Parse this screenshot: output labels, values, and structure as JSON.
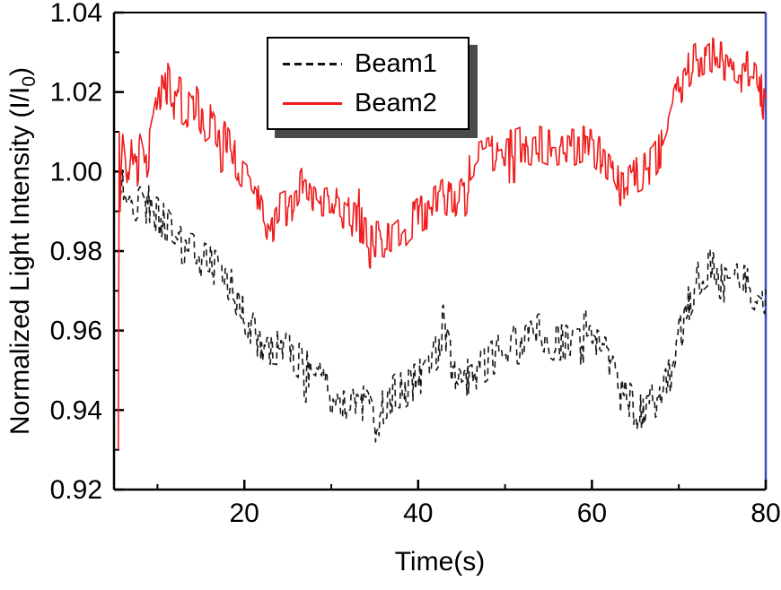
{
  "figure": {
    "background": "#ffffff"
  },
  "legend": {
    "border_color": "#000000",
    "shadow_color": "#4a4a4a"
  },
  "chart_data": {
    "type": "line",
    "title": "",
    "xlabel": "Time(s)",
    "ylabel": "Normalized Light Intensity (I/I0)",
    "ylabel_prefix": "Normalized Light Intensity (I/I",
    "ylabel_sub": "0",
    "ylabel_suffix": ")",
    "xlim": [
      5,
      80
    ],
    "ylim": [
      0.92,
      1.04
    ],
    "xticks": [
      20,
      40,
      60,
      80
    ],
    "xminor": [
      10,
      30,
      50,
      70
    ],
    "yticks": [
      0.92,
      0.94,
      0.96,
      0.98,
      1.0,
      1.02,
      1.04
    ],
    "yminor": [
      0.93,
      0.95,
      0.97,
      0.99,
      1.01,
      1.03
    ],
    "grid": false,
    "legend_position": "top-center",
    "frame_color": "#000000",
    "right_spine_color": "#3b4cc0",
    "sample_dt": 0.1,
    "series": [
      {
        "name": "Beam1",
        "style": "dashed",
        "dash": "7 5",
        "color": "#1a1a1a",
        "width": 1.6,
        "noise_amp": 0.0044,
        "seed": 11,
        "anchors": [
          [
            5.6,
            1.0
          ],
          [
            5.8,
            0.99
          ],
          [
            6,
            0.996
          ],
          [
            6.5,
            0.992
          ],
          [
            7,
            0.995
          ],
          [
            7.5,
            0.992
          ],
          [
            8,
            0.994
          ],
          [
            8.5,
            0.991
          ],
          [
            9,
            0.992
          ],
          [
            9.5,
            0.99
          ],
          [
            10,
            0.989
          ],
          [
            10.5,
            0.988
          ],
          [
            11,
            0.987
          ],
          [
            11.5,
            0.985
          ],
          [
            12,
            0.984
          ],
          [
            12.5,
            0.982
          ],
          [
            13,
            0.981
          ],
          [
            13.5,
            0.98
          ],
          [
            14,
            0.98
          ],
          [
            14.5,
            0.979
          ],
          [
            15,
            0.978
          ],
          [
            16,
            0.977
          ],
          [
            16.5,
            0.976
          ],
          [
            17,
            0.975
          ],
          [
            17.5,
            0.974
          ],
          [
            18,
            0.973
          ],
          [
            18.5,
            0.971
          ],
          [
            19,
            0.969
          ],
          [
            19.5,
            0.966
          ],
          [
            20,
            0.964
          ],
          [
            20.5,
            0.962
          ],
          [
            21,
            0.96
          ],
          [
            21.5,
            0.958
          ],
          [
            22,
            0.957
          ],
          [
            22.5,
            0.956
          ],
          [
            23.5,
            0.956
          ],
          [
            24.5,
            0.955
          ],
          [
            25,
            0.955
          ],
          [
            25.5,
            0.954
          ],
          [
            26,
            0.953
          ],
          [
            26.5,
            0.952
          ],
          [
            27,
            0.951
          ],
          [
            27.5,
            0.95
          ],
          [
            28,
            0.949
          ],
          [
            28.5,
            0.948
          ],
          [
            29,
            0.946
          ],
          [
            29.5,
            0.945
          ],
          [
            30,
            0.944
          ],
          [
            30.5,
            0.941
          ],
          [
            31,
            0.943
          ],
          [
            32,
            0.942
          ],
          [
            32.5,
            0.943
          ],
          [
            33,
            0.944
          ],
          [
            33.5,
            0.942
          ],
          [
            34,
            0.941
          ],
          [
            34.5,
            0.939
          ],
          [
            35,
            0.936
          ],
          [
            35.5,
            0.938
          ],
          [
            36,
            0.941
          ],
          [
            36.5,
            0.943
          ],
          [
            37,
            0.944
          ],
          [
            37.5,
            0.945
          ],
          [
            38.5,
            0.945
          ],
          [
            39,
            0.946
          ],
          [
            39.5,
            0.947
          ],
          [
            40,
            0.948
          ],
          [
            40.5,
            0.949
          ],
          [
            41,
            0.951
          ],
          [
            41.5,
            0.952
          ],
          [
            42,
            0.954
          ],
          [
            42.5,
            0.956
          ],
          [
            43,
            0.958
          ],
          [
            43.5,
            0.955
          ],
          [
            44,
            0.951
          ],
          [
            44.5,
            0.949
          ],
          [
            45,
            0.947
          ],
          [
            45.5,
            0.948
          ],
          [
            46,
            0.949
          ],
          [
            47,
            0.95
          ],
          [
            47.5,
            0.951
          ],
          [
            48,
            0.952
          ],
          [
            48.5,
            0.953
          ],
          [
            49,
            0.954
          ],
          [
            49.5,
            0.955
          ],
          [
            50,
            0.956
          ],
          [
            50.5,
            0.957
          ],
          [
            51,
            0.957
          ],
          [
            51.5,
            0.956
          ],
          [
            52,
            0.956
          ],
          [
            52.5,
            0.957
          ],
          [
            53,
            0.958
          ],
          [
            53.5,
            0.959
          ],
          [
            54,
            0.96
          ],
          [
            54.5,
            0.959
          ],
          [
            55,
            0.958
          ],
          [
            55.5,
            0.957
          ],
          [
            56,
            0.957
          ],
          [
            57,
            0.957
          ],
          [
            57.5,
            0.956
          ],
          [
            58,
            0.956
          ],
          [
            59,
            0.956
          ],
          [
            60,
            0.957
          ],
          [
            60.5,
            0.956
          ],
          [
            61,
            0.955
          ],
          [
            61.5,
            0.954
          ],
          [
            62,
            0.953
          ],
          [
            62.5,
            0.951
          ],
          [
            63,
            0.95
          ],
          [
            63.5,
            0.947
          ],
          [
            64,
            0.944
          ],
          [
            64.5,
            0.942
          ],
          [
            65,
            0.94
          ],
          [
            65.5,
            0.939
          ],
          [
            66,
            0.941
          ],
          [
            67,
            0.942
          ],
          [
            67.5,
            0.943
          ],
          [
            68,
            0.944
          ],
          [
            68.5,
            0.946
          ],
          [
            69,
            0.949
          ],
          [
            69.5,
            0.953
          ],
          [
            70,
            0.958
          ],
          [
            70.5,
            0.962
          ],
          [
            71,
            0.966
          ],
          [
            71.5,
            0.969
          ],
          [
            72,
            0.972
          ],
          [
            72.5,
            0.974
          ],
          [
            73,
            0.975
          ],
          [
            73.5,
            0.976
          ],
          [
            74,
            0.975
          ],
          [
            74.5,
            0.973
          ],
          [
            75,
            0.972
          ],
          [
            75.5,
            0.971
          ],
          [
            76,
            0.971
          ],
          [
            76.5,
            0.972
          ],
          [
            77,
            0.973
          ],
          [
            77.5,
            0.972
          ],
          [
            78,
            0.971
          ],
          [
            78.5,
            0.97
          ],
          [
            79,
            0.969
          ],
          [
            79.5,
            0.968
          ],
          [
            80,
            0.966
          ]
        ]
      },
      {
        "name": "Beam2",
        "style": "solid",
        "dash": "",
        "color": "#ee1c1c",
        "width": 1.6,
        "noise_amp": 0.0044,
        "seed": 23,
        "anchors": [
          [
            5.5,
            0.93
          ],
          [
            5.55,
            1.02
          ],
          [
            5.7,
            0.99
          ],
          [
            6,
            1.005
          ],
          [
            6.5,
            0.995
          ],
          [
            7,
            1.008
          ],
          [
            7.5,
            0.998
          ],
          [
            8,
            1.005
          ],
          [
            8.5,
            1.0
          ],
          [
            9,
            1.005
          ],
          [
            9.5,
            1.01
          ],
          [
            10,
            1.017
          ],
          [
            10.5,
            1.022
          ],
          [
            11,
            1.02
          ],
          [
            11.5,
            1.016
          ],
          [
            12,
            1.018
          ],
          [
            12.5,
            1.015
          ],
          [
            13,
            1.014
          ],
          [
            13.5,
            1.016
          ],
          [
            14,
            1.014
          ],
          [
            14.5,
            1.017
          ],
          [
            15,
            1.014
          ],
          [
            15.5,
            1.012
          ],
          [
            16,
            1.013
          ],
          [
            16.5,
            1.01
          ],
          [
            17,
            1.008
          ],
          [
            17.5,
            1.009
          ],
          [
            18,
            1.007
          ],
          [
            18.5,
            1.005
          ],
          [
            19,
            1.003
          ],
          [
            19.5,
            1.001
          ],
          [
            20,
            1.0
          ],
          [
            20.5,
            0.999
          ],
          [
            21,
            0.997
          ],
          [
            21.5,
            0.995
          ],
          [
            22,
            0.991
          ],
          [
            22.5,
            0.988
          ],
          [
            23,
            0.985
          ],
          [
            23.5,
            0.988
          ],
          [
            24,
            0.99
          ],
          [
            25,
            0.991
          ],
          [
            26,
            0.993
          ],
          [
            26.5,
            0.996
          ],
          [
            27,
            0.998
          ],
          [
            27.5,
            0.997
          ],
          [
            28,
            0.994
          ],
          [
            29,
            0.991
          ],
          [
            30,
            0.992
          ],
          [
            31,
            0.991
          ],
          [
            32,
            0.989
          ],
          [
            33,
            0.987
          ],
          [
            34,
            0.986
          ],
          [
            35,
            0.983
          ],
          [
            36,
            0.983
          ],
          [
            37,
            0.982
          ],
          [
            38,
            0.984
          ],
          [
            39,
            0.987
          ],
          [
            40,
            0.989
          ],
          [
            41,
            0.99
          ],
          [
            42,
            0.992
          ],
          [
            43,
            0.994
          ],
          [
            44,
            0.992
          ],
          [
            45,
            0.996
          ],
          [
            46,
            1.0
          ],
          [
            47,
            1.003
          ],
          [
            48,
            1.004
          ],
          [
            49,
            1.005
          ],
          [
            50,
            1.006
          ],
          [
            51,
            1.006
          ],
          [
            52,
            1.007
          ],
          [
            53,
            1.006
          ],
          [
            54,
            1.007
          ],
          [
            55,
            1.006
          ],
          [
            56,
            1.006
          ],
          [
            57,
            1.007
          ],
          [
            58,
            1.006
          ],
          [
            59,
            1.007
          ],
          [
            60,
            1.006
          ],
          [
            61,
            1.004
          ],
          [
            62,
            1.002
          ],
          [
            62.5,
            1.0
          ],
          [
            63,
            0.997
          ],
          [
            63.5,
            0.995
          ],
          [
            64,
            0.996
          ],
          [
            65,
            0.999
          ],
          [
            66,
            1.0
          ],
          [
            67,
            1.002
          ],
          [
            67.5,
            1.004
          ],
          [
            68,
            1.006
          ],
          [
            68.5,
            1.009
          ],
          [
            69,
            1.013
          ],
          [
            69.5,
            1.017
          ],
          [
            70,
            1.02
          ],
          [
            70.5,
            1.023
          ],
          [
            71,
            1.025
          ],
          [
            71.5,
            1.027
          ],
          [
            72,
            1.028
          ],
          [
            73,
            1.029
          ],
          [
            73.5,
            1.03
          ],
          [
            74,
            1.029
          ],
          [
            75,
            1.028
          ],
          [
            76,
            1.026
          ],
          [
            76.5,
            1.025
          ],
          [
            77,
            1.024
          ],
          [
            77.5,
            1.025
          ],
          [
            78,
            1.026
          ],
          [
            78.5,
            1.026
          ],
          [
            79,
            1.024
          ],
          [
            79.5,
            1.02
          ],
          [
            80,
            1.014
          ]
        ]
      }
    ]
  }
}
